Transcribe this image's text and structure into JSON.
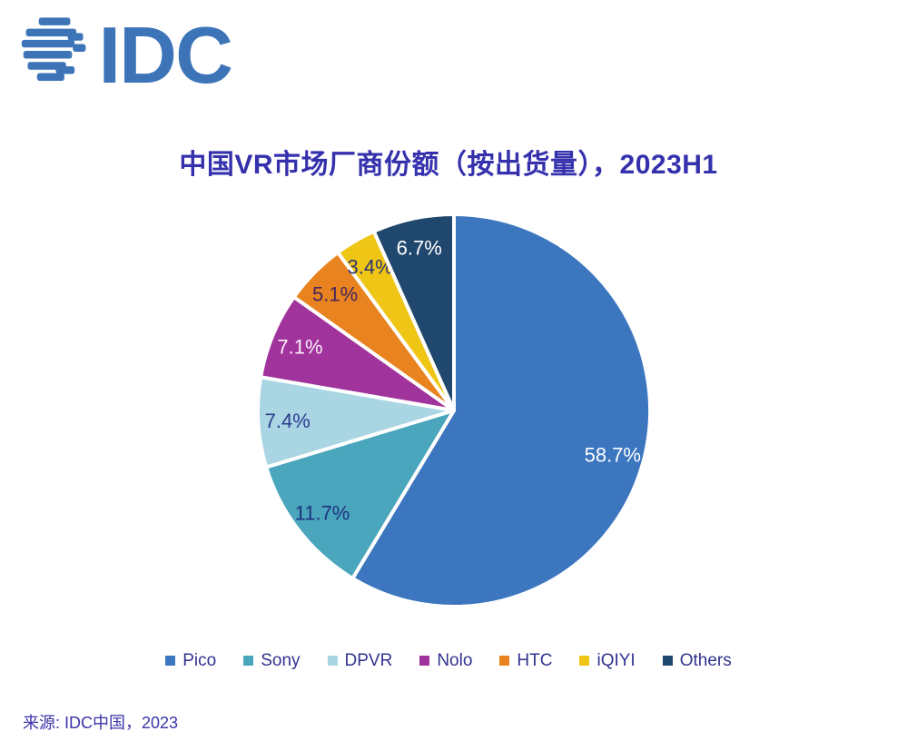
{
  "logo": {
    "text": "IDC",
    "color": "#3d74b8"
  },
  "header": {
    "title": "中国VR市场厂商份额（按出货量），2023H1",
    "color": "#3531ad"
  },
  "source": {
    "text": "来源: IDC中国，2023"
  },
  "chart_data": {
    "type": "pie",
    "title": "中国VR市场厂商份额（按出货量），2023H1",
    "start_angle_deg": 0,
    "direction": "clockwise",
    "legend_position": "bottom",
    "total": 100.1,
    "series": [
      {
        "name": "Pico",
        "value": 58.7,
        "label": "58.7%",
        "color": "#3c76bf",
        "label_color": "#ffffff"
      },
      {
        "name": "Sony",
        "value": 11.7,
        "label": "11.7%",
        "color": "#4aa6bc",
        "label_color": "#1f3282"
      },
      {
        "name": "DPVR",
        "value": 7.4,
        "label": "7.4%",
        "color": "#aad6e4",
        "label_color": "#2c3a8e"
      },
      {
        "name": "Nolo",
        "value": 7.1,
        "label": "7.1%",
        "color": "#a1339c",
        "label_color": "#fbeefb"
      },
      {
        "name": "HTC",
        "value": 5.1,
        "label": "5.1%",
        "color": "#e8831f",
        "label_color": "#45265c"
      },
      {
        "name": "iQIYI",
        "value": 3.4,
        "label": "3.4%",
        "color": "#efc516",
        "label_color": "#2f356e"
      },
      {
        "name": "Others",
        "value": 6.7,
        "label": "6.7%",
        "color": "#20476d",
        "label_color": "#ffffff"
      }
    ]
  }
}
